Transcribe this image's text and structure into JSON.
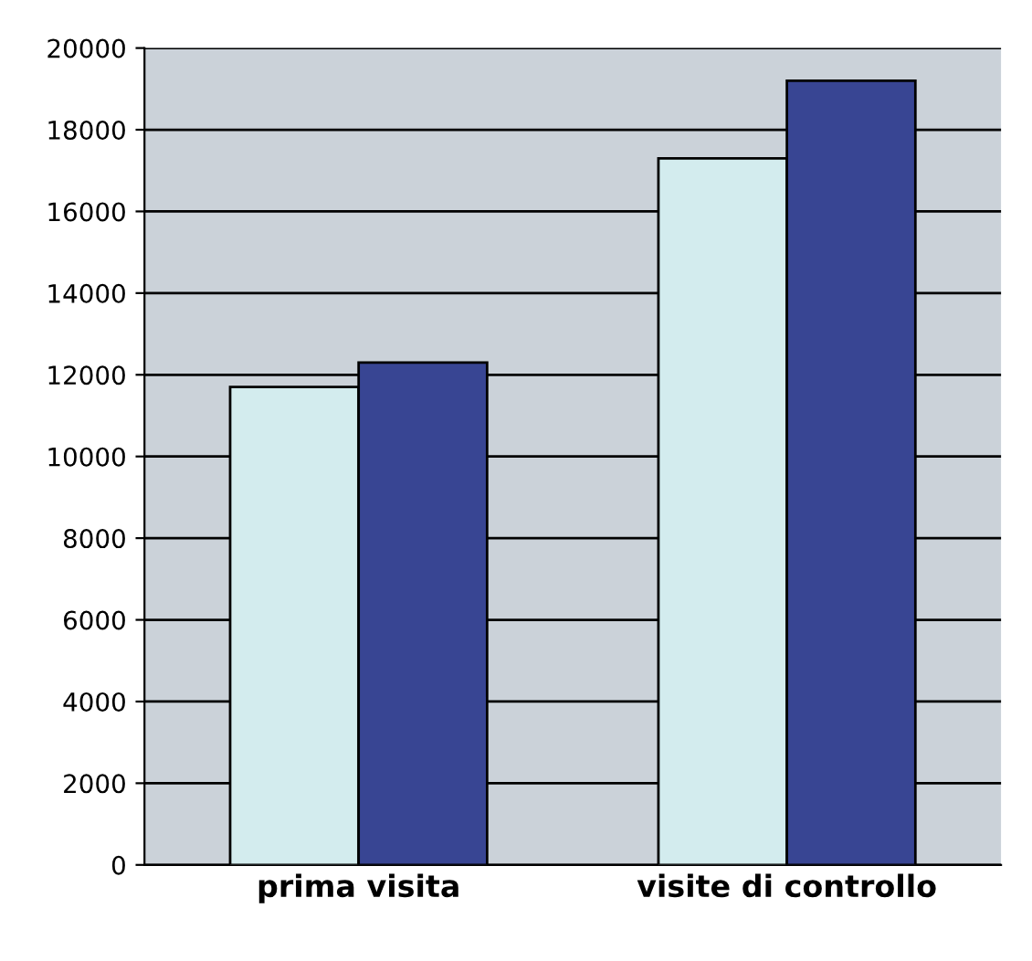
{
  "chart_data": {
    "type": "bar",
    "categories": [
      "prima visita",
      "visite di controllo"
    ],
    "series": [
      {
        "color": "#d3ecee",
        "values": [
          11700,
          17300
        ]
      },
      {
        "color": "#384593",
        "values": [
          12300,
          19200
        ]
      }
    ],
    "ylim": [
      0,
      20000
    ],
    "yticks": [
      0,
      2000,
      4000,
      6000,
      8000,
      10000,
      12000,
      14000,
      16000,
      18000,
      20000
    ],
    "grid": "y"
  }
}
